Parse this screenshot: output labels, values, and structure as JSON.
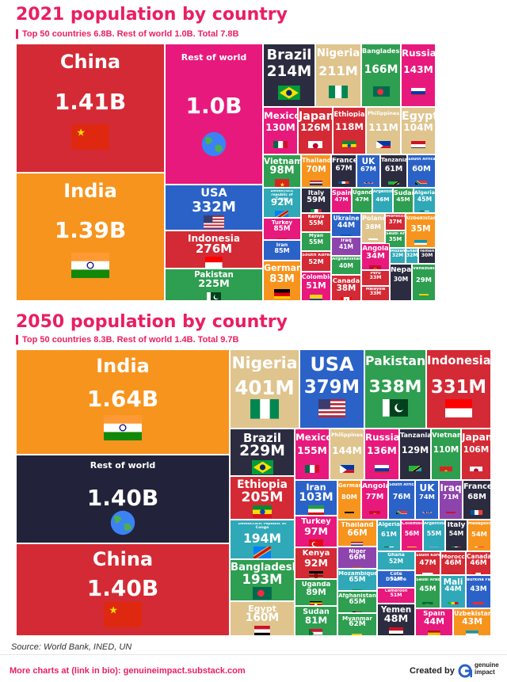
{
  "footer": {
    "source": "Source: World Bank, INED, UN",
    "more": "More charts at (link in bio): genuineimpact.substack.com",
    "created": "Created by",
    "logo_line1": "genuine",
    "logo_line2": "impact"
  },
  "colors": {
    "china": "#d42a35",
    "india": "#f7941d",
    "row": "#e8197d",
    "row50": "#22223a",
    "pakistan": "#2e9e50",
    "indonesia": "#d42a35",
    "usa": "#2a62c8",
    "nigeria": "#dfc48e",
    "brazil": "#2c2c40",
    "bangladesh": "#2e9e50",
    "russia": "#e8197d",
    "mexico": "#e8197d",
    "japan": "#d42a35",
    "ethiopia": "#d42a35",
    "philippines": "#dfc48e",
    "egypt": "#dfc48e",
    "vietnam": "#2e9e50",
    "thailand": "#f7941d",
    "france": "#2c2c40",
    "uk": "#2a62c8",
    "tanzania": "#2c2c40",
    "southafrica": "#2a62c8",
    "drc": "#2fa8b8",
    "turkey": "#e8197d",
    "italy": "#2c2c40",
    "kenya": "#d42a35",
    "myanmar": "#2e9e50",
    "iran": "#2a62c8",
    "southkorea": "#d42a35",
    "germany": "#f7941d",
    "colombia": "#e8197d",
    "spain": "#e8197d",
    "uganda": "#2e9e50",
    "argentina": "#2fa8b8",
    "sudan": "#2e9e50",
    "algeria": "#2fa8b8",
    "ukraine": "#2a62c8",
    "poland": "#dfc48e",
    "morocco": "#d42a35",
    "iraq": "#8e44ad",
    "angola": "#e8197d",
    "afghanistan": "#2e9e50",
    "peru": "#d42a35",
    "canada": "#d42a35",
    "malaysia": "#d42a35",
    "nepal": "#2c2c40",
    "uzbekistan": "#f7941d",
    "saudi": "#2e9e50",
    "ghana": "#2fa8b8",
    "mozambique": "#2fa8b8",
    "yemen": "#2c2c40",
    "niger": "#8e44ad",
    "cotedivoire": "#2a62c8",
    "cameroon": "#e8197d",
    "mali": "#2fa8b8",
    "madagascar": "#f7941d",
    "burkina": "#2a62c8",
    "venezuela": "#2e9e50",
    "teal": "#2fa8b8",
    "purple": "#8e44ad"
  },
  "chart_data": [
    {
      "type": "treemap",
      "title": "2021 population by country",
      "subtitle": "Top 50 countries 6.8B. Rest of world 1.0B. Total 7.8B",
      "items": [
        {
          "name": "China",
          "label": "1.41B",
          "value": 1.41,
          "flag": "cn"
        },
        {
          "name": "India",
          "label": "1.39B",
          "value": 1.39,
          "flag": "in"
        },
        {
          "name": "Rest of world",
          "label": "1.0B",
          "value": 1.0,
          "flag": "earth"
        },
        {
          "name": "USA",
          "label": "332M",
          "value": 0.332,
          "flag": "us"
        },
        {
          "name": "Indonesia",
          "label": "276M",
          "value": 0.276,
          "flag": "id"
        },
        {
          "name": "Pakistan",
          "label": "225M",
          "value": 0.225,
          "flag": "pk"
        },
        {
          "name": "Brazil",
          "label": "214M",
          "value": 0.214,
          "flag": "br"
        },
        {
          "name": "Nigeria",
          "label": "211M",
          "value": 0.211,
          "flag": "ng"
        },
        {
          "name": "Bangladesh",
          "label": "166M",
          "value": 0.166,
          "flag": "bd"
        },
        {
          "name": "Russia",
          "label": "143M",
          "value": 0.143,
          "flag": "ru"
        },
        {
          "name": "Mexico",
          "label": "130M",
          "value": 0.13,
          "flag": "mx"
        },
        {
          "name": "Japan",
          "label": "126M",
          "value": 0.126,
          "flag": "jp"
        },
        {
          "name": "Ethiopia",
          "label": "118M",
          "value": 0.118,
          "flag": "et"
        },
        {
          "name": "Philippines",
          "label": "111M",
          "value": 0.111,
          "flag": "ph"
        },
        {
          "name": "Egypt",
          "label": "104M",
          "value": 0.104,
          "flag": "eg"
        },
        {
          "name": "Vietnam",
          "label": "98M",
          "value": 0.098,
          "flag": "vn"
        },
        {
          "name": "Democratic republic of Congo",
          "label": "92M",
          "value": 0.092,
          "flag": "cd"
        },
        {
          "name": "Turkey",
          "label": "85M",
          "value": 0.085,
          "flag": "tr"
        },
        {
          "name": "Iran",
          "label": "85M",
          "value": 0.085,
          "flag": "ir"
        },
        {
          "name": "Germany",
          "label": "83M",
          "value": 0.083,
          "flag": "de"
        },
        {
          "name": "Thailand",
          "label": "70M",
          "value": 0.07,
          "flag": "th"
        },
        {
          "name": "France",
          "label": "67M",
          "value": 0.067,
          "flag": "fr"
        },
        {
          "name": "UK",
          "label": "67M",
          "value": 0.067,
          "flag": "gb"
        },
        {
          "name": "Tanzania",
          "label": "61M",
          "value": 0.061,
          "flag": "tz"
        },
        {
          "name": "South Africa",
          "label": "60M",
          "value": 0.06,
          "flag": "za"
        },
        {
          "name": "Italy",
          "label": "59M",
          "value": 0.059,
          "flag": "it"
        },
        {
          "name": "Kenya",
          "label": "55M",
          "value": 0.055,
          "flag": "ke"
        },
        {
          "name": "Myan",
          "label": "55M",
          "value": 0.055,
          "flag": "mm"
        },
        {
          "name": "South Korea",
          "label": "52M",
          "value": 0.052,
          "flag": "kr"
        },
        {
          "name": "Colombia",
          "label": "51M",
          "value": 0.051,
          "flag": "co"
        },
        {
          "name": "Spain",
          "label": "47M",
          "value": 0.047,
          "flag": "es"
        },
        {
          "name": "Uganda",
          "label": "47M",
          "value": 0.047,
          "flag": "ug"
        },
        {
          "name": "Argentina",
          "label": "46M",
          "value": 0.046,
          "flag": "ar"
        },
        {
          "name": "Sudan",
          "label": "45M",
          "value": 0.045,
          "flag": "sd"
        },
        {
          "name": "Algeria",
          "label": "45M",
          "value": 0.045,
          "flag": "dz"
        },
        {
          "name": "Ukraine",
          "label": "44M",
          "value": 0.044,
          "flag": "ua"
        },
        {
          "name": "Iraq",
          "label": "41M",
          "value": 0.041,
          "flag": "iq"
        },
        {
          "name": "Afghanistan",
          "label": "40M",
          "value": 0.04,
          "flag": "af"
        },
        {
          "name": "Poland",
          "label": "38M",
          "value": 0.038,
          "flag": "pl"
        },
        {
          "name": "Canada",
          "label": "38M",
          "value": 0.038,
          "flag": "ca"
        },
        {
          "name": "Morocco",
          "label": "37M",
          "value": 0.037,
          "flag": "ma"
        },
        {
          "name": "Saudi Arabia",
          "label": "35M",
          "value": 0.035,
          "flag": "sa"
        },
        {
          "name": "Uzbekistan",
          "label": "35M",
          "value": 0.035,
          "flag": "uz"
        },
        {
          "name": "Angola",
          "label": "34M",
          "value": 0.034,
          "flag": "ao"
        },
        {
          "name": "Peru",
          "label": "33M",
          "value": 0.033,
          "flag": "pe"
        },
        {
          "name": "Malaysia",
          "label": "33M",
          "value": 0.033,
          "flag": "my"
        },
        {
          "name": "Mozambique",
          "label": "32M",
          "value": 0.032,
          "flag": "mz"
        },
        {
          "name": "Ghana",
          "label": "32M",
          "value": 0.032,
          "flag": "gh"
        },
        {
          "name": "Yemen",
          "label": "30M",
          "value": 0.03,
          "flag": "ye"
        },
        {
          "name": "Nepal",
          "label": "30M",
          "value": 0.03,
          "flag": "np"
        },
        {
          "name": "Venezuela",
          "label": "29M",
          "value": 0.029,
          "flag": "ve"
        }
      ]
    },
    {
      "type": "treemap",
      "title": "2050 population by country",
      "subtitle": "Top 50 countries 8.3B. Rest of world 1.4B. Total 9.7B",
      "items": [
        {
          "name": "India",
          "label": "1.64B",
          "value": 1.64,
          "flag": "in"
        },
        {
          "name": "Rest of world",
          "label": "1.40B",
          "value": 1.4,
          "flag": "earth"
        },
        {
          "name": "China",
          "label": "1.40B",
          "value": 1.4,
          "flag": "cn"
        },
        {
          "name": "Nigeria",
          "label": "401M",
          "value": 0.401,
          "flag": "ng"
        },
        {
          "name": "USA",
          "label": "379M",
          "value": 0.379,
          "flag": "us"
        },
        {
          "name": "Pakistan",
          "label": "338M",
          "value": 0.338,
          "flag": "pk"
        },
        {
          "name": "Indonesia",
          "label": "331M",
          "value": 0.331,
          "flag": "id"
        },
        {
          "name": "Brazil",
          "label": "229M",
          "value": 0.229,
          "flag": "br"
        },
        {
          "name": "Ethiopia",
          "label": "205M",
          "value": 0.205,
          "flag": "et"
        },
        {
          "name": "Democratic republic of Congo",
          "label": "194M",
          "value": 0.194,
          "flag": "cd"
        },
        {
          "name": "Bangladesh",
          "label": "193M",
          "value": 0.193,
          "flag": "bd"
        },
        {
          "name": "Egypt",
          "label": "160M",
          "value": 0.16,
          "flag": "eg"
        },
        {
          "name": "Mexico",
          "label": "155M",
          "value": 0.155,
          "flag": "mx"
        },
        {
          "name": "Philippines",
          "label": "144M",
          "value": 0.144,
          "flag": "ph"
        },
        {
          "name": "Russia",
          "label": "136M",
          "value": 0.136,
          "flag": "ru"
        },
        {
          "name": "Tanzania",
          "label": "129M",
          "value": 0.129,
          "flag": "tz"
        },
        {
          "name": "Vietnam",
          "label": "110M",
          "value": 0.11,
          "flag": "vn"
        },
        {
          "name": "Japan",
          "label": "106M",
          "value": 0.106,
          "flag": "jp"
        },
        {
          "name": "Iran",
          "label": "103M",
          "value": 0.103,
          "flag": "ir"
        },
        {
          "name": "Turkey",
          "label": "97M",
          "value": 0.097,
          "flag": "tr"
        },
        {
          "name": "Kenya",
          "label": "92M",
          "value": 0.092,
          "flag": "ke"
        },
        {
          "name": "Uganda",
          "label": "89M",
          "value": 0.089,
          "flag": "ug"
        },
        {
          "name": "Sudan",
          "label": "81M",
          "value": 0.081,
          "flag": "sd"
        },
        {
          "name": "Germany",
          "label": "80M",
          "value": 0.08,
          "flag": "de"
        },
        {
          "name": "Angola",
          "label": "77M",
          "value": 0.077,
          "flag": "ao"
        },
        {
          "name": "South Africa",
          "label": "76M",
          "value": 0.076,
          "flag": "za"
        },
        {
          "name": "UK",
          "label": "74M",
          "value": 0.074,
          "flag": "gb"
        },
        {
          "name": "Iraq",
          "label": "71M",
          "value": 0.071,
          "flag": "iq"
        },
        {
          "name": "France",
          "label": "68M",
          "value": 0.068,
          "flag": "fr"
        },
        {
          "name": "Thailand",
          "label": "66M",
          "value": 0.066,
          "flag": "th"
        },
        {
          "name": "Niger",
          "label": "66M",
          "value": 0.066,
          "flag": "ne"
        },
        {
          "name": "Mozambique",
          "label": "65M",
          "value": 0.065,
          "flag": "mz"
        },
        {
          "name": "Afghanistan",
          "label": "65M",
          "value": 0.065,
          "flag": "af"
        },
        {
          "name": "Myanmar",
          "label": "62M",
          "value": 0.062,
          "flag": "mm"
        },
        {
          "name": "Algeria",
          "label": "61M",
          "value": 0.061,
          "flag": "dz"
        },
        {
          "name": "Colombia",
          "label": "56M",
          "value": 0.056,
          "flag": "co"
        },
        {
          "name": "Argentina",
          "label": "55M",
          "value": 0.055,
          "flag": "ar"
        },
        {
          "name": "Italy",
          "label": "54M",
          "value": 0.054,
          "flag": "it"
        },
        {
          "name": "Madagascar",
          "label": "54M",
          "value": 0.054,
          "flag": "mg"
        },
        {
          "name": "Ghana",
          "label": "52M",
          "value": 0.052,
          "flag": "gh"
        },
        {
          "name": "Côte D'Ivoire",
          "label": "51M",
          "value": 0.051,
          "flag": "ci"
        },
        {
          "name": "Cameroon",
          "label": "51M",
          "value": 0.051,
          "flag": "cm"
        },
        {
          "name": "Yemen",
          "label": "48M",
          "value": 0.048,
          "flag": "ye"
        },
        {
          "name": "South Korea",
          "label": "47M",
          "value": 0.047,
          "flag": "kr"
        },
        {
          "name": "Morocco",
          "label": "46M",
          "value": 0.046,
          "flag": "ma"
        },
        {
          "name": "Canada",
          "label": "46M",
          "value": 0.046,
          "flag": "ca"
        },
        {
          "name": "Saudi Arabia",
          "label": "45M",
          "value": 0.045,
          "flag": "sa"
        },
        {
          "name": "Mali",
          "label": "44M",
          "value": 0.044,
          "flag": "ml"
        },
        {
          "name": "Spain",
          "label": "44M",
          "value": 0.044,
          "flag": "es"
        },
        {
          "name": "Burkina Faso",
          "label": "43M",
          "value": 0.043,
          "flag": "bf"
        },
        {
          "name": "Uzbekistan",
          "label": "43M",
          "value": 0.043,
          "flag": "uz"
        }
      ]
    }
  ]
}
